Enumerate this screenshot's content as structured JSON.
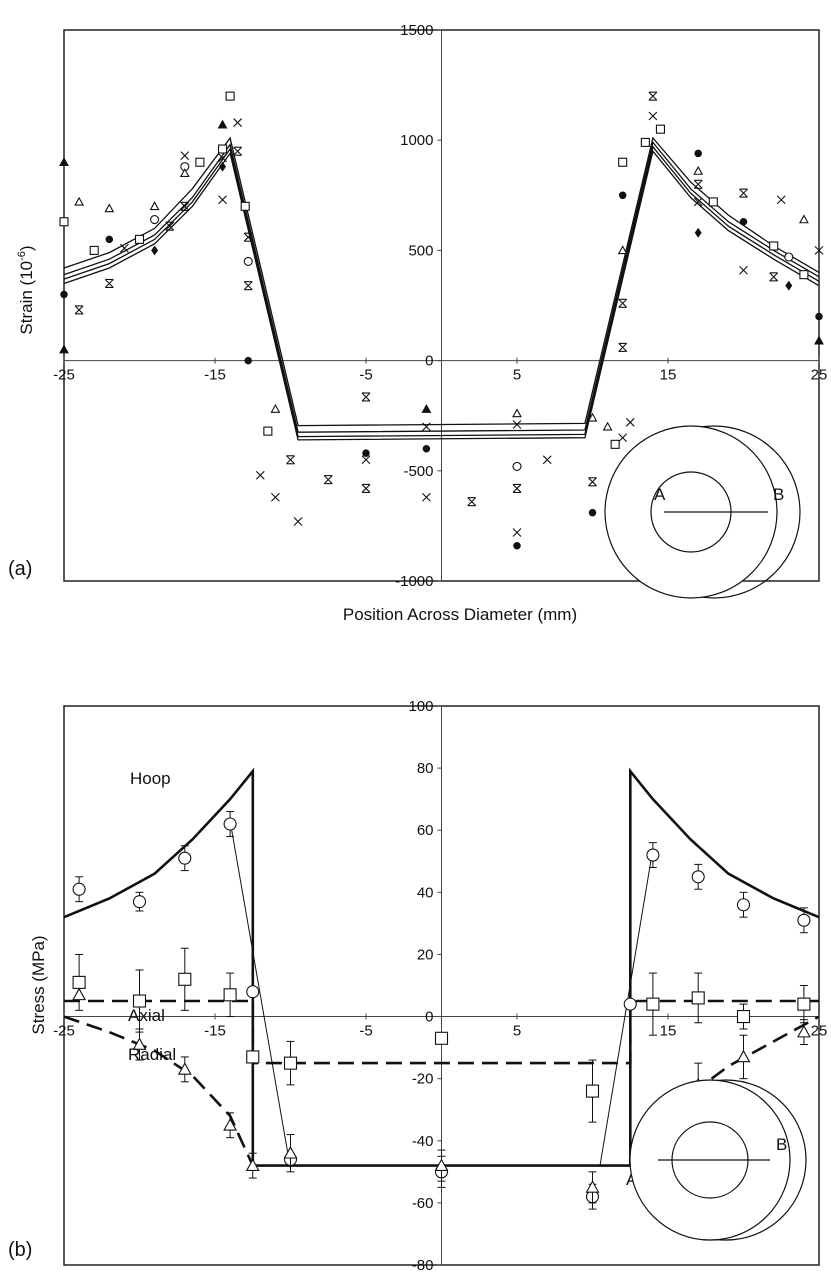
{
  "chart_data": [
    {
      "type": "scatter",
      "panel_label": "(a)",
      "title": "",
      "xlabel": "Position Across Diameter (mm)",
      "ylabel": "Strain (10",
      "ylabel_sup": "-6",
      "ylabel_end": ")",
      "xlim": [
        -25,
        25
      ],
      "ylim": [
        -1000,
        1500
      ],
      "xticks": [
        "-25",
        "-15",
        "-5",
        "5",
        "15",
        "25"
      ],
      "xtick_values": [
        -25,
        -15,
        -5,
        5,
        15,
        25
      ],
      "yticks": [
        "1500",
        "1000",
        "500",
        "0",
        "-500",
        "-1000"
      ],
      "ytick_values": [
        1500,
        1000,
        500,
        0,
        -500,
        -1000
      ],
      "grid": false,
      "inset": {
        "label_a": "A",
        "label_b": "B"
      },
      "curves": [
        {
          "x": [
            -25,
            -22,
            -19,
            -16.5,
            -14,
            -9.5,
            9.5,
            14,
            16.5,
            19,
            22,
            25
          ],
          "y": [
            420,
            490,
            600,
            780,
            1010,
            -295,
            -285,
            1010,
            810,
            660,
            520,
            400
          ]
        },
        {
          "x": [
            -25,
            -22,
            -19,
            -16.5,
            -14,
            -9.5,
            9.5,
            14,
            16.5,
            19,
            22,
            25
          ],
          "y": [
            390,
            460,
            570,
            740,
            980,
            -325,
            -315,
            990,
            780,
            630,
            500,
            380
          ]
        },
        {
          "x": [
            -25,
            -22,
            -19,
            -16.5,
            -14,
            -9.5,
            9.5,
            14,
            16.5,
            19,
            22,
            25
          ],
          "y": [
            370,
            440,
            550,
            720,
            960,
            -345,
            -335,
            970,
            760,
            610,
            480,
            360
          ]
        },
        {
          "x": [
            -25,
            -22,
            -19,
            -16.5,
            -14,
            -9.5,
            9.5,
            14,
            16.5,
            19,
            22,
            25
          ],
          "y": [
            350,
            420,
            530,
            700,
            940,
            -360,
            -350,
            950,
            740,
            590,
            460,
            340
          ]
        }
      ],
      "points": [
        {
          "m": "triangle-filled",
          "x": -25,
          "y": 900
        },
        {
          "m": "square",
          "x": -25,
          "y": 630
        },
        {
          "m": "circle-filled",
          "x": -25,
          "y": 300
        },
        {
          "m": "triangle-filled",
          "x": -25,
          "y": 50
        },
        {
          "m": "triangle",
          "x": -24,
          "y": 720
        },
        {
          "m": "star",
          "x": -24,
          "y": 230
        },
        {
          "m": "square",
          "x": -23,
          "y": 500
        },
        {
          "m": "triangle",
          "x": -22,
          "y": 690
        },
        {
          "m": "circle-filled",
          "x": -22,
          "y": 550
        },
        {
          "m": "star",
          "x": -22,
          "y": 350
        },
        {
          "m": "x",
          "x": -21,
          "y": 510
        },
        {
          "m": "square",
          "x": -20,
          "y": 550
        },
        {
          "m": "triangle",
          "x": -19,
          "y": 700
        },
        {
          "m": "circle",
          "x": -19,
          "y": 640
        },
        {
          "m": "diamond",
          "x": -19,
          "y": 500
        },
        {
          "m": "star",
          "x": -18,
          "y": 610
        },
        {
          "m": "x",
          "x": -17,
          "y": 930
        },
        {
          "m": "circle",
          "x": -17,
          "y": 880
        },
        {
          "m": "triangle",
          "x": -17,
          "y": 850
        },
        {
          "m": "star",
          "x": -17,
          "y": 700
        },
        {
          "m": "square",
          "x": -16,
          "y": 900
        },
        {
          "m": "triangle-filled",
          "x": -14.5,
          "y": 1070
        },
        {
          "m": "square",
          "x": -14.5,
          "y": 960
        },
        {
          "m": "x",
          "x": -14.5,
          "y": 920
        },
        {
          "m": "diamond",
          "x": -14.5,
          "y": 880
        },
        {
          "m": "x",
          "x": -14.5,
          "y": 730
        },
        {
          "m": "square",
          "x": -14,
          "y": 1200
        },
        {
          "m": "x",
          "x": -13.5,
          "y": 1080
        },
        {
          "m": "star",
          "x": -13.5,
          "y": 950
        },
        {
          "m": "square",
          "x": -13,
          "y": 700
        },
        {
          "m": "star",
          "x": -12.8,
          "y": 560
        },
        {
          "m": "circle",
          "x": -12.8,
          "y": 450
        },
        {
          "m": "star",
          "x": -12.8,
          "y": 340
        },
        {
          "m": "circle-filled",
          "x": -12.8,
          "y": 0
        },
        {
          "m": "triangle",
          "x": -11,
          "y": -220
        },
        {
          "m": "square",
          "x": -11.5,
          "y": -320
        },
        {
          "m": "x",
          "x": -12,
          "y": -520
        },
        {
          "m": "x",
          "x": -11,
          "y": -620
        },
        {
          "m": "star",
          "x": -10,
          "y": -450
        },
        {
          "m": "x",
          "x": -9.5,
          "y": -730
        },
        {
          "m": "star",
          "x": -7.5,
          "y": -540
        },
        {
          "m": "star",
          "x": -5,
          "y": -580
        },
        {
          "m": "star",
          "x": -5,
          "y": -165
        },
        {
          "m": "circle-filled",
          "x": -5,
          "y": -420
        },
        {
          "m": "x",
          "x": -5,
          "y": -450
        },
        {
          "m": "circle-filled",
          "x": -1,
          "y": -400
        },
        {
          "m": "triangle-filled",
          "x": -1,
          "y": -220
        },
        {
          "m": "x",
          "x": -1,
          "y": -300
        },
        {
          "m": "x",
          "x": -1,
          "y": -620
        },
        {
          "m": "star",
          "x": 2,
          "y": -640
        },
        {
          "m": "triangle",
          "x": 5,
          "y": -240
        },
        {
          "m": "x",
          "x": 5,
          "y": -290
        },
        {
          "m": "x",
          "x": 5,
          "y": -780
        },
        {
          "m": "circle-filled",
          "x": 5,
          "y": -840
        },
        {
          "m": "star",
          "x": 5,
          "y": -580
        },
        {
          "m": "circle",
          "x": 5,
          "y": -480
        },
        {
          "m": "x",
          "x": 7,
          "y": -450
        },
        {
          "m": "triangle",
          "x": 10,
          "y": -260
        },
        {
          "m": "star",
          "x": 10,
          "y": -550
        },
        {
          "m": "circle-filled",
          "x": 10,
          "y": -690
        },
        {
          "m": "triangle",
          "x": 11,
          "y": -300
        },
        {
          "m": "square",
          "x": 11.5,
          "y": -380
        },
        {
          "m": "x",
          "x": 12,
          "y": -350
        },
        {
          "m": "x",
          "x": 12.5,
          "y": -280
        },
        {
          "m": "star",
          "x": 12,
          "y": 60
        },
        {
          "m": "star",
          "x": 12,
          "y": 260
        },
        {
          "m": "triangle",
          "x": 12,
          "y": 500
        },
        {
          "m": "circle-filled",
          "x": 12,
          "y": 750
        },
        {
          "m": "square",
          "x": 12,
          "y": 900
        },
        {
          "m": "square",
          "x": 13.5,
          "y": 990
        },
        {
          "m": "star",
          "x": 14,
          "y": 1200
        },
        {
          "m": "x",
          "x": 14,
          "y": 1110
        },
        {
          "m": "square",
          "x": 14.5,
          "y": 1050
        },
        {
          "m": "circle-filled",
          "x": 17,
          "y": 940
        },
        {
          "m": "triangle",
          "x": 17,
          "y": 860
        },
        {
          "m": "star",
          "x": 17,
          "y": 800
        },
        {
          "m": "x",
          "x": 17,
          "y": 720
        },
        {
          "m": "diamond",
          "x": 17,
          "y": 580
        },
        {
          "m": "square",
          "x": 18,
          "y": 720
        },
        {
          "m": "star",
          "x": 20,
          "y": 760
        },
        {
          "m": "circle-filled",
          "x": 20,
          "y": 630
        },
        {
          "m": "x",
          "x": 20,
          "y": 410
        },
        {
          "m": "square",
          "x": 22,
          "y": 520
        },
        {
          "m": "x",
          "x": 22.5,
          "y": 730
        },
        {
          "m": "star",
          "x": 22,
          "y": 380
        },
        {
          "m": "circle",
          "x": 23,
          "y": 470
        },
        {
          "m": "diamond",
          "x": 23,
          "y": 340
        },
        {
          "m": "triangle",
          "x": 24,
          "y": 640
        },
        {
          "m": "square",
          "x": 24,
          "y": 390
        },
        {
          "m": "x",
          "x": 25,
          "y": 500
        },
        {
          "m": "circle-filled",
          "x": 25,
          "y": 200
        },
        {
          "m": "triangle-filled",
          "x": 25,
          "y": 90
        }
      ]
    },
    {
      "type": "line",
      "panel_label": "(b)",
      "title": "",
      "xlabel": "",
      "ylabel": "Stress (MPa)",
      "xlim": [
        -25,
        25
      ],
      "ylim": [
        -80,
        100
      ],
      "xticks": [
        "-25",
        "-15",
        "-5",
        "5",
        "15",
        "25"
      ],
      "xtick_values": [
        -25,
        -15,
        -5,
        5,
        15,
        25
      ],
      "yticks": [
        "100",
        "80",
        "60",
        "40",
        "20",
        "0",
        "-20",
        "-40",
        "-60",
        "-80"
      ],
      "ytick_values": [
        100,
        80,
        60,
        40,
        20,
        0,
        -20,
        -40,
        -60,
        -80
      ],
      "grid": false,
      "annotations": {
        "hoop": "Hoop",
        "axial": "Axial",
        "radial": "Radial",
        "a_mark": "A"
      },
      "inset": {
        "label_b": "B"
      },
      "series": [
        {
          "name": "Hoop",
          "style": "solid-thick",
          "x": [
            -25,
            -22,
            -19,
            -16.5,
            -14,
            -12.5,
            -12.5,
            12.5,
            12.5,
            14,
            16.5,
            19,
            22,
            25
          ],
          "y": [
            32,
            38,
            46,
            57,
            70,
            79,
            -48,
            -48,
            79,
            70,
            57,
            46,
            38,
            32
          ]
        },
        {
          "name": "Axial",
          "style": "dashed",
          "x": [
            -25,
            -12.5,
            -12.5,
            12.5,
            12.5,
            25
          ],
          "y": [
            5,
            5,
            -15,
            -15,
            5,
            5
          ]
        },
        {
          "name": "Radial",
          "style": "dashed",
          "x": [
            -25,
            -22,
            -19,
            -16.5,
            -14,
            -12.5
          ],
          "y": [
            0,
            -5,
            -11,
            -19,
            -32,
            -48
          ]
        },
        {
          "name": "Radial-right",
          "style": "dashed",
          "x": [
            12.5,
            14,
            16.5,
            19,
            22,
            25
          ],
          "y": [
            -48,
            -37,
            -25,
            -16,
            -8,
            0
          ]
        },
        {
          "name": "thin-left",
          "style": "solid-thin",
          "x": [
            -14,
            -10
          ],
          "y": [
            63,
            -49
          ]
        },
        {
          "name": "thin-right",
          "style": "solid-thin",
          "x": [
            10.5,
            14
          ],
          "y": [
            -48,
            54
          ]
        }
      ],
      "markers": [
        {
          "m": "circle",
          "x": -24,
          "y": 41,
          "err": 4
        },
        {
          "m": "circle",
          "x": -20,
          "y": 37,
          "err": 3
        },
        {
          "m": "circle",
          "x": -17,
          "y": 51,
          "err": 4
        },
        {
          "m": "circle",
          "x": -14,
          "y": 62,
          "err": 4
        },
        {
          "m": "circle",
          "x": -12.5,
          "y": 8,
          "err": 0
        },
        {
          "m": "circle",
          "x": -10,
          "y": -46,
          "err": 0
        },
        {
          "m": "circle",
          "x": 0,
          "y": -50,
          "err": 5
        },
        {
          "m": "circle",
          "x": 10,
          "y": -58,
          "err": 4
        },
        {
          "m": "circle",
          "x": 12.5,
          "y": 4,
          "err": 0
        },
        {
          "m": "circle",
          "x": 14,
          "y": 52,
          "err": 4
        },
        {
          "m": "circle",
          "x": 17,
          "y": 45,
          "err": 4
        },
        {
          "m": "circle",
          "x": 20,
          "y": 36,
          "err": 4
        },
        {
          "m": "circle",
          "x": 24,
          "y": 31,
          "err": 4
        },
        {
          "m": "square",
          "x": -24,
          "y": 11,
          "err": 9
        },
        {
          "m": "square",
          "x": -20,
          "y": 5,
          "err": 10
        },
        {
          "m": "square",
          "x": -17,
          "y": 12,
          "err": 10
        },
        {
          "m": "square",
          "x": -14,
          "y": 7,
          "err": 7
        },
        {
          "m": "square",
          "x": -12.5,
          "y": -13,
          "err": 0
        },
        {
          "m": "square",
          "x": -10,
          "y": -15,
          "err": 7
        },
        {
          "m": "square",
          "x": 0,
          "y": -7,
          "err": 0
        },
        {
          "m": "square",
          "x": 10,
          "y": -24,
          "err": 10
        },
        {
          "m": "square",
          "x": 14,
          "y": 4,
          "err": 10
        },
        {
          "m": "square",
          "x": 17,
          "y": 6,
          "err": 8
        },
        {
          "m": "square",
          "x": 20,
          "y": 0,
          "err": 4
        },
        {
          "m": "square",
          "x": 24,
          "y": 4,
          "err": 6
        },
        {
          "m": "triangle",
          "x": -24,
          "y": 7,
          "err": 0
        },
        {
          "m": "triangle",
          "x": -20,
          "y": -9,
          "err": 5
        },
        {
          "m": "triangle",
          "x": -17,
          "y": -17,
          "err": 4
        },
        {
          "m": "triangle",
          "x": -14,
          "y": -35,
          "err": 4
        },
        {
          "m": "triangle",
          "x": -12.5,
          "y": -48,
          "err": 4
        },
        {
          "m": "triangle",
          "x": -10,
          "y": -44,
          "err": 6
        },
        {
          "m": "triangle",
          "x": 0,
          "y": -48,
          "err": 5
        },
        {
          "m": "triangle",
          "x": 10,
          "y": -55,
          "err": 5
        },
        {
          "m": "triangle",
          "x": 14,
          "y": -38,
          "err": 6
        },
        {
          "m": "triangle",
          "x": 17,
          "y": -22,
          "err": 7
        },
        {
          "m": "triangle",
          "x": 20,
          "y": -13,
          "err": 7
        },
        {
          "m": "triangle",
          "x": 24,
          "y": -5,
          "err": 4
        }
      ]
    }
  ]
}
